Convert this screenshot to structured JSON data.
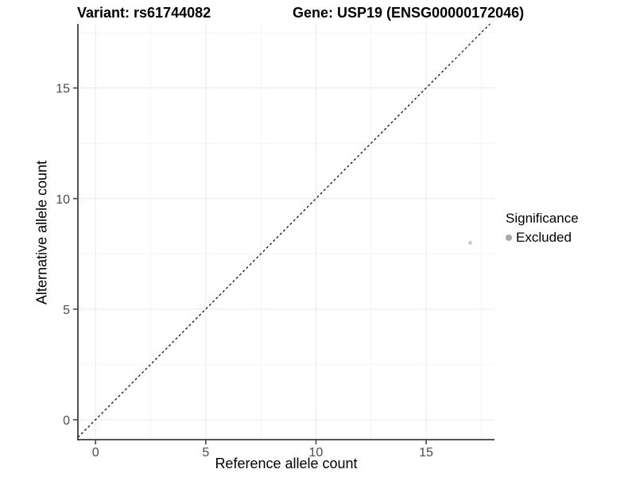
{
  "chart_data": {
    "type": "scatter",
    "titles": {
      "left": "Variant: rs61744082",
      "right": "Gene: USP19 (ENSG00000172046)"
    },
    "xlabel": "Reference allele count",
    "ylabel": "Alternative allele count",
    "x_ticks": [
      0,
      5,
      10,
      15
    ],
    "y_ticks": [
      0,
      5,
      10,
      15
    ],
    "xlim": [
      -0.8,
      18.1
    ],
    "ylim": [
      -0.9,
      17.9
    ],
    "grid": {
      "major": true,
      "minor": true,
      "major_color": "#e9e9e9",
      "minor_color": "#f4f4f4"
    },
    "identity_line": {
      "slope": 1,
      "intercept": 0,
      "style": "dashed",
      "color": "#000000"
    },
    "series": [
      {
        "name": "Excluded",
        "color": "#c4c4c4",
        "points": [
          [
            17,
            8
          ]
        ]
      }
    ],
    "legend": {
      "title": "Significance",
      "position": "right",
      "entries": [
        {
          "label": "Excluded",
          "color": "#a8a8a8",
          "marker": "circle"
        }
      ]
    }
  },
  "colors": {
    "axis_line": "#3c3c3c",
    "tick_label": "#4d4d4d",
    "background": "#ffffff"
  }
}
